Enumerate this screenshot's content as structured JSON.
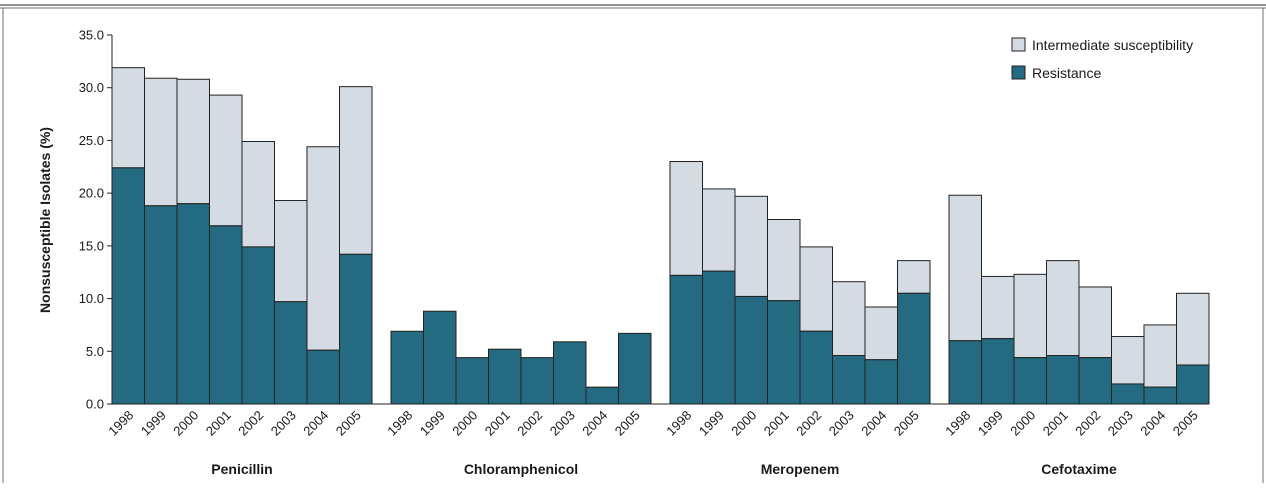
{
  "colors": {
    "intermediate": "#d4dbe2",
    "resistance": "#246a80",
    "outline": "#222222",
    "frame": "#6f6f6f"
  },
  "chart_data": {
    "type": "bar",
    "stacked": true,
    "title": "",
    "ylabel": "Nonsusceptible Isolates (%)",
    "ylim": [
      0,
      35
    ],
    "yticks": [
      "0.0",
      "5.0",
      "10.0",
      "15.0",
      "20.0",
      "25.0",
      "30.0",
      "35.0"
    ],
    "ytick_values": [
      0,
      5,
      10,
      15,
      20,
      25,
      30,
      35
    ],
    "grid": false,
    "legend_position": "top-right",
    "legend": [
      "Intermediate susceptibility",
      "Resistance"
    ],
    "years": [
      "1998",
      "1999",
      "2000",
      "2001",
      "2002",
      "2003",
      "2004",
      "2005"
    ],
    "groups": [
      {
        "name": "Penicillin",
        "resistance": [
          22.4,
          18.8,
          19.0,
          16.9,
          14.9,
          9.7,
          5.1,
          14.2
        ],
        "total": [
          31.9,
          30.9,
          30.8,
          29.3,
          24.9,
          19.3,
          24.4,
          30.1
        ]
      },
      {
        "name": "Chloramphenicol",
        "resistance": [
          6.9,
          8.8,
          4.4,
          5.2,
          4.4,
          5.9,
          1.6,
          6.7
        ],
        "total": [
          6.9,
          8.8,
          4.4,
          5.2,
          4.4,
          5.9,
          1.6,
          6.7
        ]
      },
      {
        "name": "Meropenem",
        "resistance": [
          12.2,
          12.6,
          10.2,
          9.8,
          6.9,
          4.6,
          4.2,
          10.5
        ],
        "total": [
          23.0,
          20.4,
          19.7,
          17.5,
          14.9,
          11.6,
          9.2,
          13.6
        ]
      },
      {
        "name": "Cefotaxime",
        "resistance": [
          6.0,
          6.2,
          4.4,
          4.6,
          4.4,
          1.9,
          1.6,
          3.7
        ],
        "total": [
          19.8,
          12.1,
          12.3,
          13.6,
          11.1,
          6.4,
          7.5,
          10.5
        ]
      }
    ]
  }
}
